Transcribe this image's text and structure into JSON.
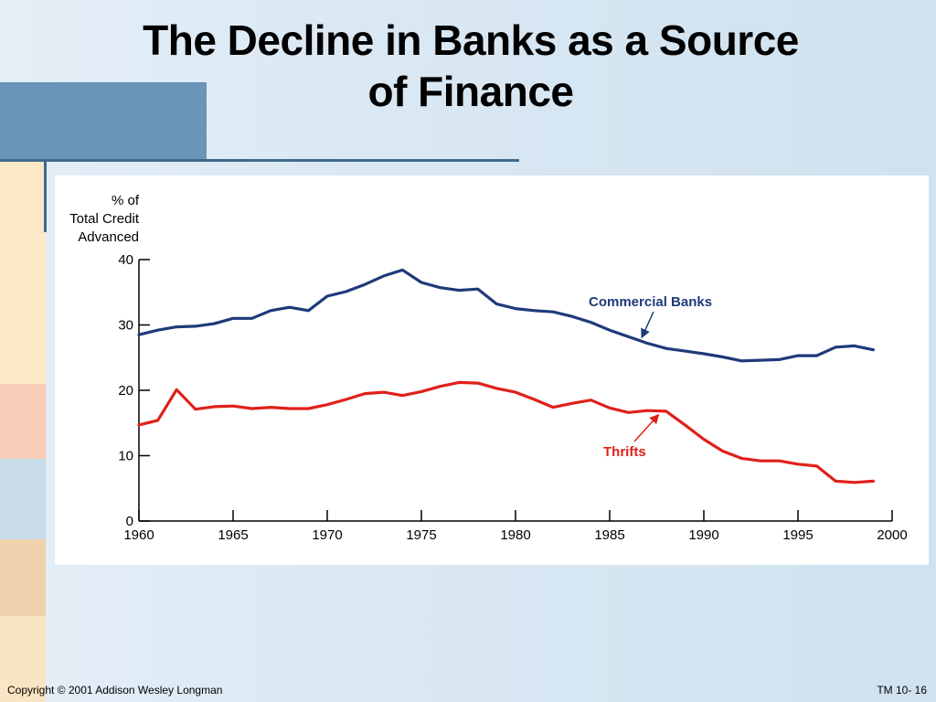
{
  "slide": {
    "title_line1": "The Decline in Banks as a Source",
    "title_line2": "of Finance",
    "footer_left": "Copyright © 2001 Addison Wesley Longman",
    "footer_right": "TM 10- 16"
  },
  "chart_data": {
    "type": "line",
    "title": "",
    "ylabel_lines": [
      "% of",
      "Total Credit",
      "Advanced"
    ],
    "xlabel": "",
    "xlim": [
      1960,
      2000
    ],
    "ylim": [
      0,
      40
    ],
    "x_ticks": [
      1960,
      1965,
      1970,
      1975,
      1980,
      1985,
      1990,
      1995,
      2000
    ],
    "y_ticks": [
      0,
      10,
      20,
      30,
      40
    ],
    "grid": false,
    "legend": "inline-labels",
    "series": [
      {
        "name": "Commercial Banks",
        "color": "#1f3a7a",
        "x": [
          1960,
          1961,
          1962,
          1963,
          1964,
          1965,
          1966,
          1967,
          1968,
          1969,
          1970,
          1971,
          1972,
          1973,
          1974,
          1975,
          1976,
          1977,
          1978,
          1979,
          1980,
          1981,
          1982,
          1983,
          1984,
          1985,
          1986,
          1987,
          1988,
          1989,
          1990,
          1991,
          1992,
          1993,
          1994,
          1995,
          1996,
          1997,
          1998,
          1999
        ],
        "y": [
          28.5,
          29.2,
          29.7,
          29.8,
          30.2,
          31.0,
          31.0,
          32.2,
          32.7,
          32.2,
          34.4,
          35.1,
          36.2,
          37.5,
          38.4,
          36.5,
          35.7,
          35.3,
          35.5,
          33.2,
          32.5,
          32.2,
          32.0,
          31.3,
          30.4,
          29.2,
          28.2,
          27.2,
          26.4,
          26.0,
          25.6,
          25.1,
          24.5,
          24.6,
          24.7,
          25.3,
          25.3,
          26.6,
          26.8,
          26.2
        ]
      },
      {
        "name": "Thrifts",
        "color": "#e0201a",
        "x": [
          1960,
          1961,
          1962,
          1963,
          1964,
          1965,
          1966,
          1967,
          1968,
          1969,
          1970,
          1971,
          1972,
          1973,
          1974,
          1975,
          1976,
          1977,
          1978,
          1979,
          1980,
          1981,
          1982,
          1983,
          1984,
          1985,
          1986,
          1987,
          1988,
          1989,
          1990,
          1991,
          1992,
          1993,
          1994,
          1995,
          1996,
          1997,
          1998,
          1999
        ],
        "y": [
          14.7,
          15.4,
          20.1,
          17.1,
          17.5,
          17.6,
          17.2,
          17.4,
          17.2,
          17.2,
          17.8,
          18.6,
          19.5,
          19.7,
          19.2,
          19.8,
          20.6,
          21.2,
          21.1,
          20.3,
          19.7,
          18.6,
          17.4,
          18.0,
          18.5,
          17.3,
          16.6,
          16.9,
          16.8,
          14.7,
          12.5,
          10.7,
          9.6,
          9.2,
          9.2,
          8.7,
          8.4,
          6.1,
          5.9,
          6.1
        ]
      }
    ],
    "annotations": [
      {
        "text": "Commercial Banks",
        "color": "#1f3a7a",
        "points_to_year": 1986.7
      },
      {
        "text": "Thrifts",
        "color": "#e0201a",
        "points_to_year": 1987.6
      }
    ]
  }
}
